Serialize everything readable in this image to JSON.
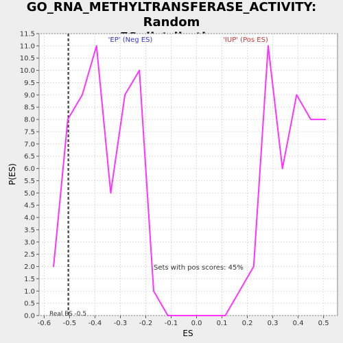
{
  "title_line1": "GO_RNA_METHYLTRANSFERASE_ACTIVITY: Random",
  "title_line2": "ES distribution",
  "chart_data": {
    "type": "line",
    "title": "GO_RNA_METHYLTRANSFERASE_ACTIVITY: Random ES distribution",
    "xlabel": "ES",
    "ylabel": "P(ES)",
    "xlim": [
      -0.62,
      0.555
    ],
    "ylim": [
      0,
      11.5
    ],
    "x_ticks": [
      "-0.6",
      "-0.5",
      "-0.4",
      "-0.3",
      "-0.2",
      "-0.1",
      "0.0",
      "0.1",
      "0.2",
      "0.3",
      "0.4",
      "0.5"
    ],
    "y_ticks": [
      "0.0",
      "0.5",
      "1.0",
      "1.5",
      "2.0",
      "2.5",
      "3.0",
      "3.5",
      "4.0",
      "4.5",
      "5.0",
      "5.5",
      "6.0",
      "6.5",
      "7.0",
      "7.5",
      "8.0",
      "8.5",
      "9.0",
      "9.5",
      "10.0",
      "10.5",
      "11.0",
      "11.5"
    ],
    "grid": true,
    "series": [
      {
        "color": "#ff33ff",
        "x": [
          -0.563,
          -0.507,
          -0.45,
          -0.394,
          -0.338,
          -0.282,
          -0.225,
          -0.169,
          -0.113,
          -0.056,
          0.0,
          0.056,
          0.113,
          0.169,
          0.225,
          0.282,
          0.338,
          0.394,
          0.45,
          0.507
        ],
        "y": [
          2,
          8,
          9,
          11,
          5,
          9,
          10,
          1,
          0,
          0,
          0,
          0,
          0,
          1,
          2,
          11,
          6,
          9,
          8,
          8
        ]
      }
    ],
    "real_es": -0.505,
    "annotations": {
      "neg": {
        "text": "'EP' (Neg ES)",
        "color": "#3333cc"
      },
      "pos": {
        "text": "'IUP' (Pos ES)",
        "color": "#cc3333"
      },
      "pos_scores": "Sets with pos scores: 45%",
      "real_es": "Real ES -0.5"
    }
  }
}
